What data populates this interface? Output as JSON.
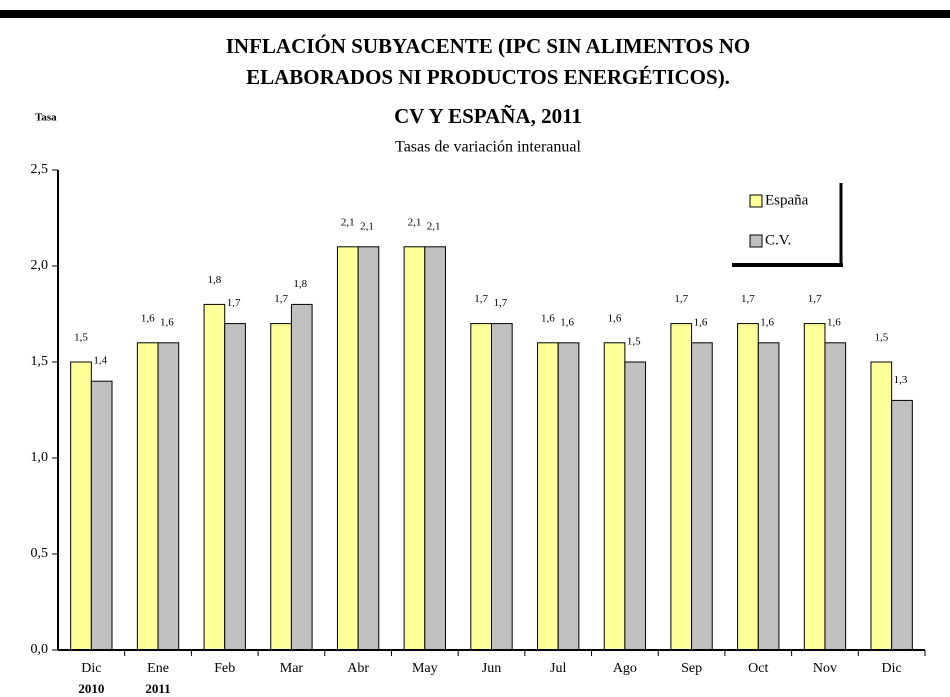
{
  "chart_data": {
    "type": "bar",
    "title": [
      "INFLACIÓN SUBYACENTE  (IPC SIN ALIMENTOS NO",
      "ELABORADOS NI PRODUCTOS ENERGÉTICOS).",
      "CV Y ESPAÑA, 2011"
    ],
    "subtitle": "Tasas de variación interanual",
    "y_label": "Tasa",
    "categories": [
      "Dic",
      "Ene",
      "Feb",
      "Mar",
      "Abr",
      "May",
      "Jun",
      "Jul",
      "Ago",
      "Sep",
      "Oct",
      "Nov",
      "Dic"
    ],
    "category_sublabels": [
      "2010",
      "2011",
      null,
      null,
      null,
      null,
      null,
      null,
      null,
      null,
      null,
      null,
      null
    ],
    "series": [
      {
        "name": "España",
        "color": "#ffff99",
        "values": [
          1.5,
          1.6,
          1.8,
          1.7,
          2.1,
          2.1,
          1.7,
          1.6,
          1.6,
          1.7,
          1.7,
          1.7,
          1.5
        ],
        "value_labels": [
          "1,5",
          "1,6",
          "1,8",
          "1,7",
          "2,1",
          "2,1",
          "1,7",
          "1,6",
          "1,6",
          "1,7",
          "1,7",
          "1,7",
          "1,5"
        ]
      },
      {
        "name": "C.V.",
        "color": "#c0c0c0",
        "values": [
          1.4,
          1.6,
          1.7,
          1.8,
          2.1,
          2.1,
          1.7,
          1.6,
          1.5,
          1.6,
          1.6,
          1.6,
          1.3
        ],
        "value_labels": [
          "1,4",
          "1,6",
          "1,7",
          "1,8",
          "2,1",
          "2,1",
          "1,7",
          "1,6",
          "1,5",
          "1,6",
          "1,6",
          "1,6",
          "1,3"
        ]
      }
    ],
    "ylim": [
      0,
      2.5
    ],
    "yticks": [
      {
        "value": 0,
        "label": "0,0"
      },
      {
        "value": 0.5,
        "label": "0,5"
      },
      {
        "value": 1,
        "label": "1,0"
      },
      {
        "value": 1.5,
        "label": "1,5"
      },
      {
        "value": 2,
        "label": "2,0"
      },
      {
        "value": 2.5,
        "label": "2,5"
      }
    ],
    "legend": "upper right"
  }
}
